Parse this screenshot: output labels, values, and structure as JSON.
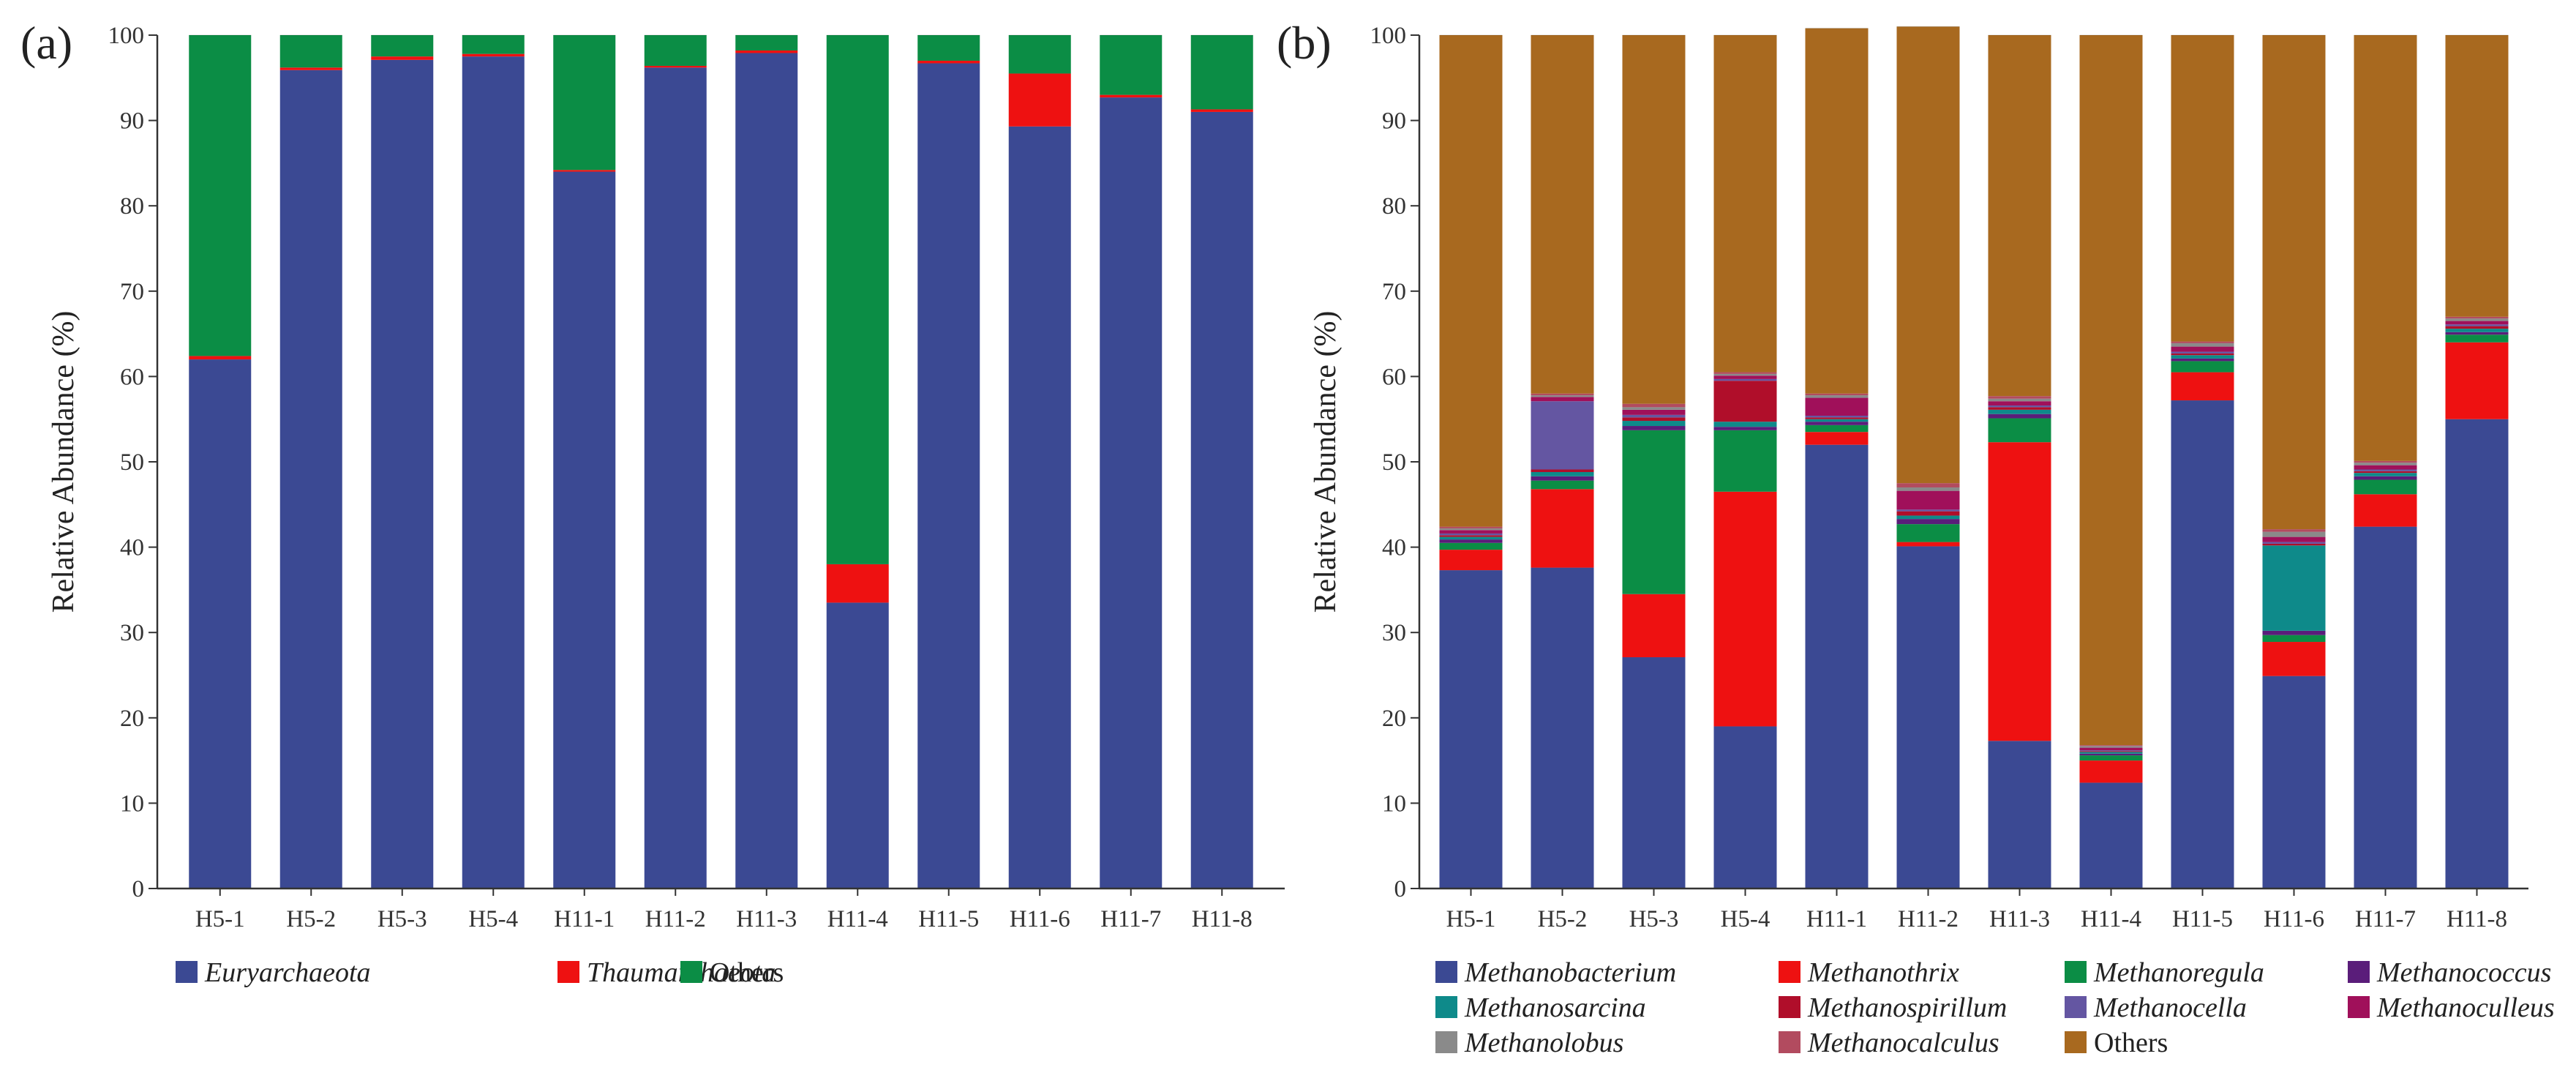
{
  "chart_data": [
    {
      "panel_label": "(a)",
      "type": "bar",
      "stacked": true,
      "ylabel": "Relative Abundance (%)",
      "xlabel": "",
      "ylim": [
        0,
        100
      ],
      "yticks": [
        0,
        10,
        20,
        30,
        40,
        50,
        60,
        70,
        80,
        90,
        100
      ],
      "categories": [
        "H5-1",
        "H5-2",
        "H5-3",
        "H5-4",
        "H11-1",
        "H11-2",
        "H11-3",
        "H11-4",
        "H11-5",
        "H11-6",
        "H11-7",
        "H11-8"
      ],
      "legend_position": "bottom",
      "series": [
        {
          "name": "Euryarchaeota",
          "italic": true,
          "color": "#3b4993",
          "values": [
            62.0,
            95.9,
            97.1,
            97.5,
            84.0,
            96.2,
            97.9,
            33.5,
            96.7,
            89.3,
            92.7,
            91.0
          ]
        },
        {
          "name": "Thaumarchaeota",
          "italic": true,
          "color": "#ee1111",
          "values": [
            0.4,
            0.3,
            0.4,
            0.3,
            0.2,
            0.2,
            0.3,
            4.5,
            0.3,
            6.2,
            0.3,
            0.3
          ]
        },
        {
          "name": "Others",
          "italic": false,
          "color": "#0b8d45",
          "values": [
            37.6,
            3.8,
            2.5,
            2.2,
            15.8,
            3.6,
            1.8,
            62.0,
            3.0,
            4.5,
            7.0,
            8.7
          ]
        }
      ]
    },
    {
      "panel_label": "(b)",
      "type": "bar",
      "stacked": true,
      "ylabel": "Relative Abundance (%)",
      "xlabel": "",
      "ylim": [
        0,
        100
      ],
      "yticks": [
        0,
        10,
        20,
        30,
        40,
        50,
        60,
        70,
        80,
        90,
        100
      ],
      "categories": [
        "H5-1",
        "H5-2",
        "H5-3",
        "H5-4",
        "H11-1",
        "H11-2",
        "H11-3",
        "H11-4",
        "H11-5",
        "H11-6",
        "H11-7",
        "H11-8"
      ],
      "legend_position": "bottom",
      "legend_columns": 4,
      "series": [
        {
          "name": "Methanobacterium",
          "italic": true,
          "color": "#3b4993",
          "values": [
            37.3,
            37.6,
            27.1,
            19.0,
            52.0,
            40.1,
            17.3,
            12.4,
            57.2,
            24.9,
            42.4,
            55.0
          ]
        },
        {
          "name": "Methanothrix",
          "italic": true,
          "color": "#ee1111",
          "values": [
            2.4,
            9.2,
            7.4,
            27.5,
            1.5,
            0.5,
            35.0,
            2.6,
            3.3,
            4.0,
            3.8,
            9.0
          ]
        },
        {
          "name": "Methanoregula",
          "italic": true,
          "color": "#0b8d45",
          "values": [
            0.8,
            1.0,
            19.2,
            7.2,
            0.8,
            2.1,
            2.8,
            0.6,
            1.3,
            0.8,
            1.7,
            0.9
          ]
        },
        {
          "name": "Methanococcus",
          "italic": true,
          "color": "#5a1d7a",
          "values": [
            0.4,
            0.5,
            0.5,
            0.4,
            0.4,
            0.6,
            0.5,
            0.2,
            0.3,
            0.5,
            0.4,
            0.3
          ]
        },
        {
          "name": "Methanosarcina",
          "italic": true,
          "color": "#0e8a8a",
          "values": [
            0.3,
            0.5,
            0.6,
            0.6,
            0.3,
            0.4,
            0.5,
            0.2,
            0.4,
            10.0,
            0.4,
            0.4
          ]
        },
        {
          "name": "Methanospirillum",
          "italic": true,
          "color": "#b00e2a",
          "values": [
            0.2,
            0.3,
            0.4,
            4.8,
            0.2,
            0.5,
            0.3,
            0.1,
            0.2,
            0.2,
            0.2,
            0.3
          ]
        },
        {
          "name": "Methanocella",
          "italic": true,
          "color": "#6456a2",
          "values": [
            0.2,
            8.0,
            0.3,
            0.2,
            0.2,
            0.2,
            0.2,
            0.1,
            0.2,
            0.2,
            0.2,
            0.2
          ]
        },
        {
          "name": "Methanoculleus",
          "italic": true,
          "color": "#a0105a",
          "values": [
            0.4,
            0.5,
            0.6,
            0.4,
            2.1,
            2.2,
            0.5,
            0.3,
            0.6,
            0.6,
            0.5,
            0.4
          ]
        },
        {
          "name": "Methanolobus",
          "italic": true,
          "color": "#8a8a8a",
          "values": [
            0.2,
            0.2,
            0.3,
            0.2,
            0.3,
            0.4,
            0.3,
            0.2,
            0.4,
            0.6,
            0.3,
            0.3
          ]
        },
        {
          "name": "Methanocalculus",
          "italic": true,
          "color": "#b24b5f",
          "values": [
            0.2,
            0.2,
            0.4,
            0.2,
            0.2,
            0.5,
            0.3,
            0.1,
            0.2,
            0.3,
            0.2,
            0.2
          ]
        },
        {
          "name": "Others",
          "italic": false,
          "color": "#a8691f",
          "values": [
            57.6,
            42.0,
            43.2,
            39.5,
            42.8,
            53.5,
            42.3,
            83.2,
            35.9,
            57.9,
            49.9,
            33.0
          ]
        }
      ]
    }
  ]
}
